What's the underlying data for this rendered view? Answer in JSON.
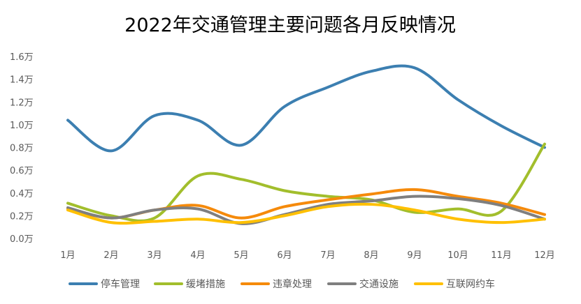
{
  "chart_data": {
    "type": "line",
    "title": "2022年交通管理主要问题各月反映情况",
    "xlabel": "",
    "ylabel": "",
    "categories": [
      "1月",
      "2月",
      "3月",
      "4月",
      "5月",
      "6月",
      "7月",
      "8月",
      "9月",
      "10月",
      "11月",
      "12月"
    ],
    "y_ticks": [
      "0.0万",
      "0.2万",
      "0.4万",
      "0.6万",
      "0.8万",
      "1.0万",
      "1.2万",
      "1.4万",
      "1.6万"
    ],
    "ylim": [
      0,
      1.6
    ],
    "y_unit": "万",
    "grid": false,
    "smooth": true,
    "legend_position": "bottom",
    "series": [
      {
        "name": "停车管理",
        "color": "#3C7FB1",
        "values": [
          1.04,
          0.77,
          1.08,
          1.04,
          0.82,
          1.16,
          1.33,
          1.47,
          1.5,
          1.22,
          0.99,
          0.8
        ]
      },
      {
        "name": "缓堵措施",
        "color": "#A2BE2C",
        "values": [
          0.31,
          0.2,
          0.18,
          0.55,
          0.52,
          0.42,
          0.37,
          0.34,
          0.23,
          0.26,
          0.24,
          0.83
        ]
      },
      {
        "name": "违章处理",
        "color": "#F58A0B",
        "values": [
          0.26,
          0.18,
          0.25,
          0.29,
          0.18,
          0.28,
          0.34,
          0.39,
          0.43,
          0.37,
          0.31,
          0.21
        ]
      },
      {
        "name": "交通设施",
        "color": "#7F7F7F",
        "values": [
          0.27,
          0.18,
          0.25,
          0.26,
          0.13,
          0.21,
          0.3,
          0.33,
          0.37,
          0.35,
          0.29,
          0.17
        ]
      },
      {
        "name": "互联网约车",
        "color": "#FFC000",
        "values": [
          0.25,
          0.14,
          0.15,
          0.17,
          0.14,
          0.2,
          0.28,
          0.3,
          0.25,
          0.17,
          0.14,
          0.17
        ]
      }
    ]
  }
}
